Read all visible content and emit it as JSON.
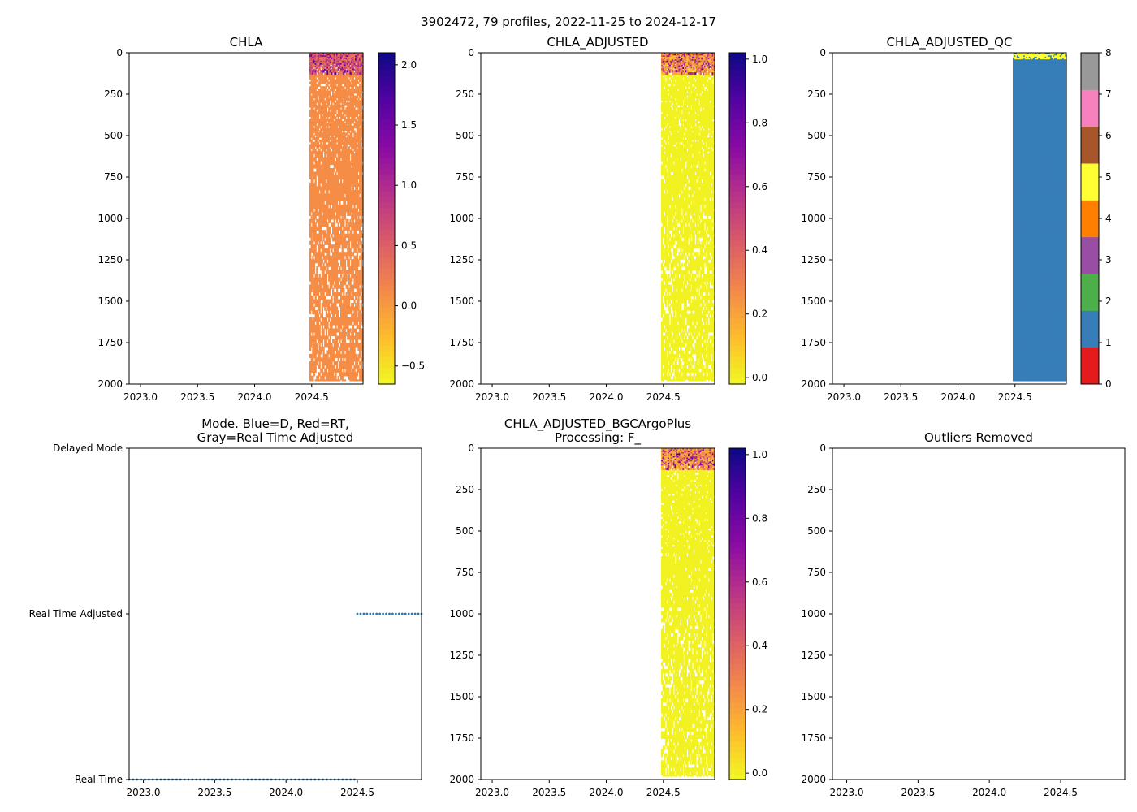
{
  "suptitle": "3902472, 79 profiles, 2022-11-25 to 2024-12-17",
  "chart_data": [
    {
      "id": "chla",
      "type": "heatmap",
      "title": [
        "CHLA"
      ],
      "x": {
        "range": [
          2022.9,
          2024.95
        ],
        "ticks": [
          2023.0,
          2023.5,
          2024.0,
          2024.5
        ],
        "tick_labels": [
          "2023.0",
          "2023.5",
          "2024.0",
          "2024.5"
        ]
      },
      "y": {
        "range": [
          2000,
          0
        ],
        "ticks": [
          0,
          250,
          500,
          750,
          1000,
          1250,
          1500,
          1750,
          2000
        ],
        "tick_labels": [
          "0",
          "250",
          "500",
          "750",
          "1000",
          "1250",
          "1500",
          "1750",
          "2000"
        ]
      },
      "data_span": {
        "x": [
          2024.48,
          2024.95
        ],
        "depth": [
          0,
          1980
        ]
      },
      "dominant_value": 0.1,
      "surface_range": [
        0.2,
        2.1
      ],
      "colorbar": {
        "cmap": "plasma_r",
        "range": [
          -0.65,
          2.1
        ],
        "ticks": [
          -0.5,
          0.0,
          0.5,
          1.0,
          1.5,
          2.0
        ],
        "tick_labels": [
          "−0.5",
          "0.0",
          "0.5",
          "1.0",
          "1.5",
          "2.0"
        ]
      }
    },
    {
      "id": "chla_adj",
      "type": "heatmap",
      "title": [
        "CHLA_ADJUSTED"
      ],
      "x": {
        "range": [
          2022.9,
          2024.95
        ],
        "ticks": [
          2023.0,
          2023.5,
          2024.0,
          2024.5
        ],
        "tick_labels": [
          "2023.0",
          "2023.5",
          "2024.0",
          "2024.5"
        ]
      },
      "y": {
        "range": [
          2000,
          0
        ],
        "ticks": [
          0,
          250,
          500,
          750,
          1000,
          1250,
          1500,
          1750,
          2000
        ],
        "tick_labels": [
          "0",
          "250",
          "500",
          "750",
          "1000",
          "1250",
          "1500",
          "1750",
          "2000"
        ]
      },
      "data_span": {
        "x": [
          2024.48,
          2024.95
        ],
        "depth": [
          0,
          1980
        ]
      },
      "dominant_value": 0.0,
      "surface_range": [
        0.1,
        1.0
      ],
      "colorbar": {
        "cmap": "plasma_r",
        "range": [
          -0.02,
          1.02
        ],
        "ticks": [
          0.0,
          0.2,
          0.4,
          0.6,
          0.8,
          1.0
        ],
        "tick_labels": [
          "0.0",
          "0.2",
          "0.4",
          "0.6",
          "0.8",
          "1.0"
        ]
      }
    },
    {
      "id": "chla_adj_qc",
      "type": "heatmap",
      "title": [
        "CHLA_ADJUSTED_QC"
      ],
      "x": {
        "range": [
          2022.9,
          2024.95
        ],
        "ticks": [
          2023.0,
          2023.5,
          2024.0,
          2024.5
        ],
        "tick_labels": [
          "2023.0",
          "2023.5",
          "2024.0",
          "2024.5"
        ]
      },
      "y": {
        "range": [
          2000,
          0
        ],
        "ticks": [
          0,
          250,
          500,
          750,
          1000,
          1250,
          1500,
          1750,
          2000
        ],
        "tick_labels": [
          "0",
          "250",
          "500",
          "750",
          "1000",
          "1250",
          "1500",
          "1750",
          "2000"
        ]
      },
      "data_span": {
        "x": [
          2024.48,
          2024.95
        ],
        "depth": [
          0,
          1980
        ]
      },
      "dominant_flag": 1,
      "surface_flag": 5,
      "colorbar": {
        "type": "discrete",
        "range": [
          0,
          8
        ],
        "colors": [
          "#e41a1c",
          "#377eb8",
          "#4daf4a",
          "#984ea3",
          "#ff7f00",
          "#ffff33",
          "#a65628",
          "#f781bf",
          "#999999"
        ],
        "ticks": [
          0,
          1,
          2,
          3,
          4,
          5,
          6,
          7,
          8
        ],
        "tick_labels": [
          "0",
          "1",
          "2",
          "3",
          "4",
          "5",
          "6",
          "7",
          "8"
        ]
      }
    },
    {
      "id": "mode",
      "type": "scatter",
      "title": [
        "Mode. Blue=D, Red=RT,",
        "Gray=Real Time Adjusted"
      ],
      "x": {
        "range": [
          2022.9,
          2024.95
        ],
        "ticks": [
          2023.0,
          2023.5,
          2024.0,
          2024.5
        ],
        "tick_labels": [
          "2023.0",
          "2023.5",
          "2024.0",
          "2024.5"
        ]
      },
      "y": {
        "range": [
          0,
          2
        ],
        "ticks": [
          2,
          1,
          0
        ],
        "tick_labels": [
          "Delayed Mode",
          "Real Time Adjusted",
          "Real Time"
        ]
      },
      "series": [
        {
          "name": "Real Time",
          "y": 0,
          "x_range": [
            2022.9,
            2024.48
          ],
          "count": 58,
          "color": "#1f77b4"
        },
        {
          "name": "Real Time Adjusted",
          "y": 1,
          "x_range": [
            2024.5,
            2024.95
          ],
          "count": 21,
          "color": "#1f77b4"
        }
      ]
    },
    {
      "id": "bgcargoplus",
      "type": "heatmap",
      "title": [
        "CHLA_ADJUSTED_BGCArgoPlus",
        "Processing: F_"
      ],
      "x": {
        "range": [
          2022.9,
          2024.95
        ],
        "ticks": [
          2023.0,
          2023.5,
          2024.0,
          2024.5
        ],
        "tick_labels": [
          "2023.0",
          "2023.5",
          "2024.0",
          "2024.5"
        ]
      },
      "y": {
        "range": [
          2000,
          0
        ],
        "ticks": [
          0,
          250,
          500,
          750,
          1000,
          1250,
          1500,
          1750,
          2000
        ],
        "tick_labels": [
          "0",
          "250",
          "500",
          "750",
          "1000",
          "1250",
          "1500",
          "1750",
          "2000"
        ]
      },
      "data_span": {
        "x": [
          2024.48,
          2024.95
        ],
        "depth": [
          0,
          1980
        ]
      },
      "dominant_value": 0.0,
      "surface_range": [
        0.1,
        1.0
      ],
      "colorbar": {
        "cmap": "plasma_r",
        "range": [
          -0.02,
          1.02
        ],
        "ticks": [
          0.0,
          0.2,
          0.4,
          0.6,
          0.8,
          1.0
        ],
        "tick_labels": [
          "0.0",
          "0.2",
          "0.4",
          "0.6",
          "0.8",
          "1.0"
        ]
      }
    },
    {
      "id": "outliers",
      "type": "scatter",
      "title": [
        "Outliers Removed"
      ],
      "x": {
        "range": [
          2022.9,
          2024.95
        ],
        "ticks": [
          2023.0,
          2023.5,
          2024.0,
          2024.5
        ],
        "tick_labels": [
          "2023.0",
          "2023.5",
          "2024.0",
          "2024.5"
        ]
      },
      "y": {
        "range": [
          2000,
          0
        ],
        "ticks": [
          0,
          250,
          500,
          750,
          1000,
          1250,
          1500,
          1750,
          2000
        ],
        "tick_labels": [
          "0",
          "250",
          "500",
          "750",
          "1000",
          "1250",
          "1500",
          "1750",
          "2000"
        ]
      },
      "series": []
    }
  ]
}
